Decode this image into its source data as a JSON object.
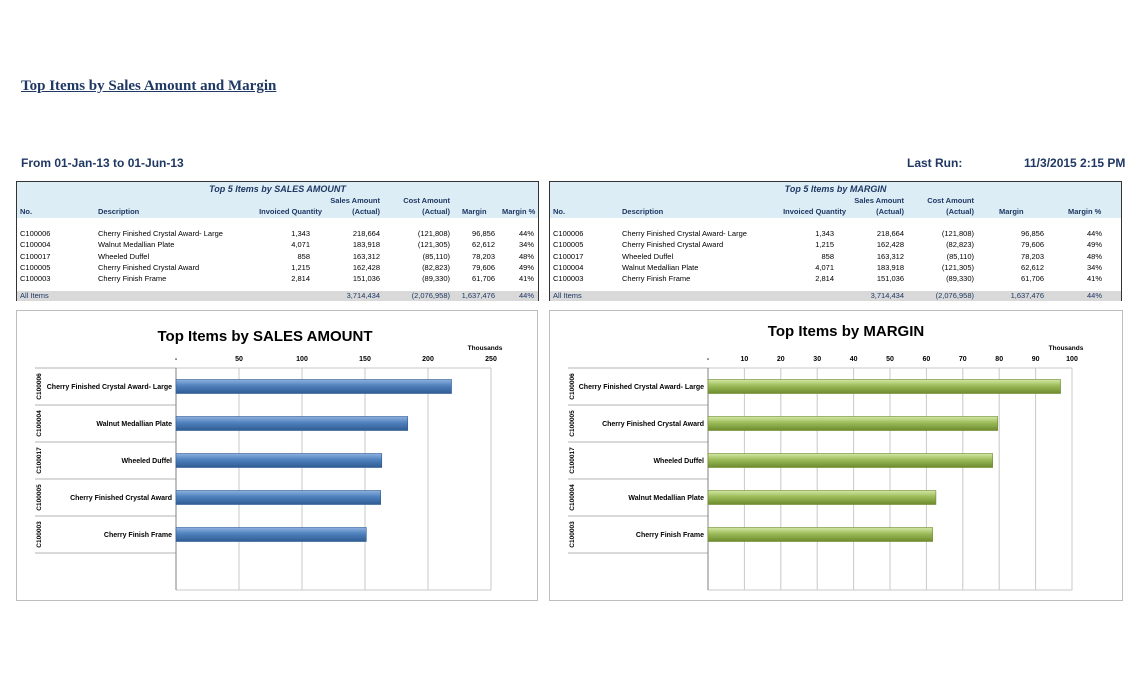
{
  "report": {
    "title": "Top Items by Sales Amount and Margin",
    "range": "From 01-Jan-13 to 01-Jun-13",
    "last_run_label": "Last Run:",
    "last_run_value": "11/3/2015 2:15 PM"
  },
  "tables": [
    {
      "caption": "Top 5 Items by SALES AMOUNT",
      "headers": {
        "no": "No.",
        "desc": "Description",
        "qty": "Invoiced Quantity",
        "sales1": "Sales Amount",
        "sales2": "(Actual)",
        "cost1": "Cost Amount",
        "cost2": "(Actual)",
        "margin": "Margin",
        "pct": "Margin %"
      },
      "rows": [
        {
          "no": "C100006",
          "desc": "Cherry Finished Crystal Award- Large",
          "qty": "1,343",
          "sales": "218,664",
          "cost": "(121,808)",
          "margin": "96,856",
          "pct": "44%"
        },
        {
          "no": "C100004",
          "desc": "Walnut Medallian Plate",
          "qty": "4,071",
          "sales": "183,918",
          "cost": "(121,305)",
          "margin": "62,612",
          "pct": "34%"
        },
        {
          "no": "C100017",
          "desc": "Wheeled Duffel",
          "qty": "858",
          "sales": "163,312",
          "cost": "(85,110)",
          "margin": "78,203",
          "pct": "48%"
        },
        {
          "no": "C100005",
          "desc": "Cherry Finished Crystal Award",
          "qty": "1,215",
          "sales": "162,428",
          "cost": "(82,823)",
          "margin": "79,606",
          "pct": "49%"
        },
        {
          "no": "C100003",
          "desc": "Cherry Finish Frame",
          "qty": "2,814",
          "sales": "151,036",
          "cost": "(89,330)",
          "margin": "61,706",
          "pct": "41%"
        }
      ],
      "total": {
        "label": "All Items",
        "sales": "3,714,434",
        "cost": "(2,076,958)",
        "margin": "1,637,476",
        "pct": "44%"
      }
    },
    {
      "caption": "Top 5 Items by MARGIN",
      "headers": {
        "no": "No.",
        "desc": "Description",
        "qty": "Invoiced Quantity",
        "sales1": "Sales Amount",
        "sales2": "(Actual)",
        "cost1": "Cost Amount",
        "cost2": "(Actual)",
        "margin": "Margin",
        "pct": "Margin %"
      },
      "rows": [
        {
          "no": "C100006",
          "desc": "Cherry Finished Crystal Award- Large",
          "qty": "1,343",
          "sales": "218,664",
          "cost": "(121,808)",
          "margin": "96,856",
          "pct": "44%"
        },
        {
          "no": "C100005",
          "desc": "Cherry Finished Crystal Award",
          "qty": "1,215",
          "sales": "162,428",
          "cost": "(82,823)",
          "margin": "79,606",
          "pct": "49%"
        },
        {
          "no": "C100017",
          "desc": "Wheeled Duffel",
          "qty": "858",
          "sales": "163,312",
          "cost": "(85,110)",
          "margin": "78,203",
          "pct": "48%"
        },
        {
          "no": "C100004",
          "desc": "Walnut Medallian Plate",
          "qty": "4,071",
          "sales": "183,918",
          "cost": "(121,305)",
          "margin": "62,612",
          "pct": "34%"
        },
        {
          "no": "C100003",
          "desc": "Cherry Finish Frame",
          "qty": "2,814",
          "sales": "151,036",
          "cost": "(89,330)",
          "margin": "61,706",
          "pct": "41%"
        }
      ],
      "total": {
        "label": "All Items",
        "sales": "3,714,434",
        "cost": "(2,076,958)",
        "margin": "1,637,476",
        "pct": "44%"
      }
    }
  ],
  "chart_data": [
    {
      "type": "bar",
      "orientation": "horizontal",
      "title": "Top Items by SALES AMOUNT",
      "unit_label": "Thousands",
      "xlim": [
        0,
        250
      ],
      "ticks": [
        "-",
        "50",
        "100",
        "150",
        "200",
        "250"
      ],
      "categories": [
        {
          "code": "C100006",
          "label": "Cherry Finished Crystal Award- Large"
        },
        {
          "code": "C100004",
          "label": "Walnut Medallian Plate"
        },
        {
          "code": "C100017",
          "label": "Wheeled Duffel"
        },
        {
          "code": "C100005",
          "label": "Cherry Finished Crystal Award"
        },
        {
          "code": "C100003",
          "label": "Cherry Finish Frame"
        }
      ],
      "values": [
        218.664,
        183.918,
        163.312,
        162.428,
        151.036
      ],
      "color": "#4f81bd",
      "grid": true
    },
    {
      "type": "bar",
      "orientation": "horizontal",
      "title": "Top Items by MARGIN",
      "unit_label": "Thousands",
      "xlim": [
        0,
        100
      ],
      "ticks": [
        "-",
        "10",
        "20",
        "30",
        "40",
        "50",
        "60",
        "70",
        "80",
        "90",
        "100"
      ],
      "categories": [
        {
          "code": "C100006",
          "label": "Cherry Finished Crystal Award- Large"
        },
        {
          "code": "C100005",
          "label": "Cherry Finished Crystal Award"
        },
        {
          "code": "C100017",
          "label": "Wheeled Duffel"
        },
        {
          "code": "C100004",
          "label": "Walnut Medallian Plate"
        },
        {
          "code": "C100003",
          "label": "Cherry Finish Frame"
        }
      ],
      "values": [
        96.856,
        79.606,
        78.203,
        62.612,
        61.706
      ],
      "color": "#9bbb59",
      "grid": true
    }
  ]
}
